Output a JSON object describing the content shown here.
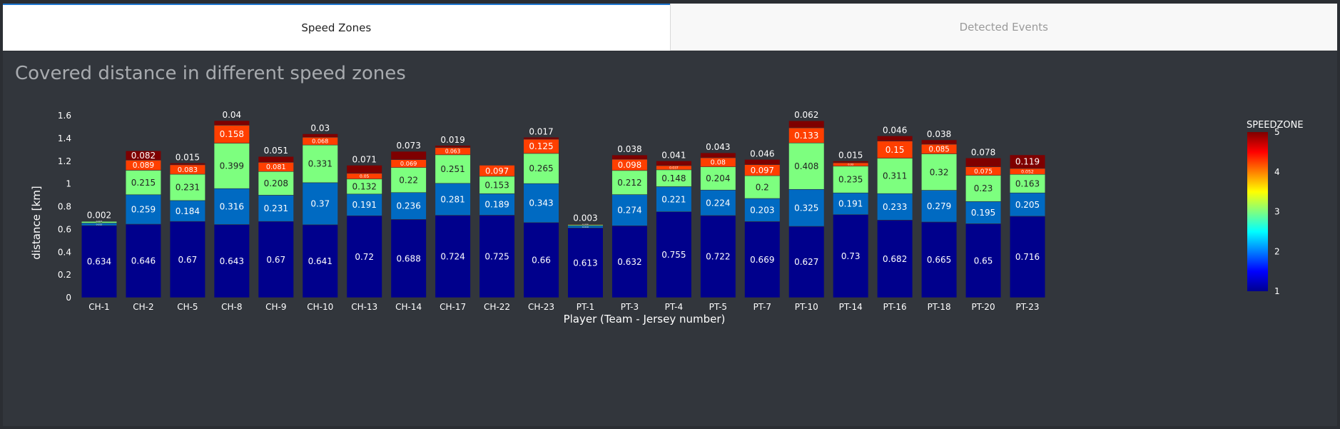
{
  "tabs": [
    {
      "label": "Speed Zones",
      "active": true
    },
    {
      "label": "Detected Events",
      "active": false
    }
  ],
  "colors": {
    "zone1": "#00008c",
    "zone2": "#006ac2",
    "zone3": "#7dff7f",
    "zone4": "#ff3f00",
    "zone5": "#7e0000",
    "panel_bg": "#32363c",
    "page_bg": "#2b2e33",
    "tab_accent": "#1f77d0"
  },
  "chart_data": {
    "type": "bar",
    "stacked": true,
    "title": "Covered distance in different speed zones",
    "xlabel": "Player (Team - Jersey number)",
    "ylabel": "distance [km]",
    "ylim": [
      0,
      1.6
    ],
    "yticks": [
      "0",
      "0.2",
      "0.4",
      "0.6",
      "0.8",
      "1",
      "1.2",
      "1.4",
      "1.6"
    ],
    "grid": false,
    "categories": [
      "CH-1",
      "CH-2",
      "CH-5",
      "CH-8",
      "CH-9",
      "CH-10",
      "CH-13",
      "CH-14",
      "CH-17",
      "CH-22",
      "CH-23",
      "PT-1",
      "PT-3",
      "PT-4",
      "PT-5",
      "PT-7",
      "PT-10",
      "PT-14",
      "PT-16",
      "PT-18",
      "PT-20",
      "PT-23"
    ],
    "series": [
      {
        "zone": 1,
        "values": [
          0.634,
          0.646,
          0.67,
          0.643,
          0.67,
          0.641,
          0.72,
          0.688,
          0.724,
          0.725,
          0.66,
          0.613,
          0.632,
          0.755,
          0.722,
          0.669,
          0.627,
          0.73,
          0.682,
          0.665,
          0.65,
          0.716
        ]
      },
      {
        "zone": 2,
        "values": [
          0.022,
          0.259,
          0.184,
          0.316,
          0.231,
          0.37,
          0.191,
          0.236,
          0.281,
          0.189,
          0.343,
          0.019,
          0.274,
          0.221,
          0.224,
          0.203,
          0.325,
          0.191,
          0.233,
          0.279,
          0.195,
          0.205
        ]
      },
      {
        "zone": 3,
        "values": [
          0.014,
          0.215,
          0.231,
          0.399,
          0.208,
          0.331,
          0.132,
          0.22,
          0.251,
          0.153,
          0.265,
          0.009,
          0.212,
          0.148,
          0.204,
          0.2,
          0.408,
          0.235,
          0.311,
          0.32,
          0.23,
          0.163
        ]
      },
      {
        "zone": 4,
        "values": [
          0.003,
          0.089,
          0.083,
          0.158,
          0.081,
          0.068,
          0.05,
          0.069,
          0.063,
          0.097,
          0.125,
          0.006,
          0.098,
          0.037,
          0.08,
          0.097,
          0.133,
          0.03,
          0.15,
          0.085,
          0.075,
          0.052
        ]
      },
      {
        "zone": 5,
        "values": [
          0.002,
          0.082,
          0.015,
          0.04,
          0.051,
          0.03,
          0.071,
          0.073,
          0.019,
          0.0,
          0.017,
          0.003,
          0.038,
          0.041,
          0.043,
          0.046,
          0.062,
          0.015,
          0.046,
          0.038,
          0.078,
          0.119
        ]
      }
    ],
    "colorbar": {
      "title": "SPEEDZONE",
      "range": [
        1,
        5
      ],
      "ticks": [
        "1",
        "2",
        "3",
        "4",
        "5"
      ],
      "colorscale": "jet"
    },
    "legend": "colorbar-right"
  }
}
